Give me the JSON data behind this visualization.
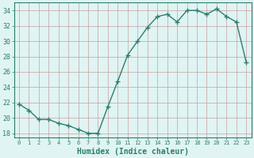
{
  "x": [
    0,
    1,
    2,
    3,
    4,
    5,
    6,
    7,
    8,
    9,
    10,
    11,
    12,
    13,
    14,
    15,
    16,
    17,
    18,
    19,
    20,
    21,
    22,
    23
  ],
  "y": [
    21.8,
    21.0,
    19.8,
    19.8,
    19.3,
    19.0,
    18.5,
    18.0,
    18.0,
    21.5,
    24.8,
    28.2,
    30.0,
    31.8,
    33.2,
    33.5,
    32.5,
    34.0,
    34.0,
    33.5,
    34.2,
    33.2,
    32.5,
    27.2
  ],
  "xlabel": "Humidex (Indice chaleur)",
  "ylim": [
    17.5,
    35.0
  ],
  "yticks": [
    18,
    20,
    22,
    24,
    26,
    28,
    30,
    32,
    34
  ],
  "xticks": [
    0,
    1,
    2,
    3,
    4,
    5,
    6,
    7,
    8,
    9,
    10,
    11,
    12,
    13,
    14,
    15,
    16,
    17,
    18,
    19,
    20,
    21,
    22,
    23
  ],
  "line_color": "#2e7d6e",
  "bg_color": "#dff4f3",
  "grid_color": "#c8a0a0",
  "axis_color": "#2e7d6e",
  "text_color": "#2e7d6e",
  "font_family": "monospace"
}
